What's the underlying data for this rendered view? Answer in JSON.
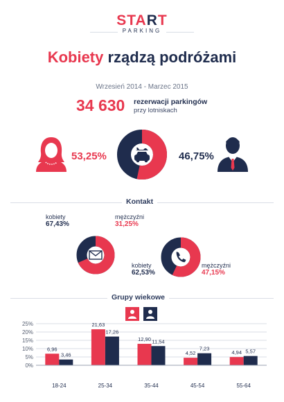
{
  "brand": {
    "name_part1": "STA",
    "name_part2": "R",
    "name_part3": "T",
    "sub": "PARKING"
  },
  "headline": {
    "accent": "Kobiety",
    "rest": " rządzą podróżami"
  },
  "period": "Wrzesień 2014 - Marzec 2015",
  "reservations": {
    "count": "34 630",
    "line1": "rezerwacji parkingów",
    "line2": "przy lotniskach"
  },
  "colors": {
    "women": "#e8384f",
    "men": "#1f2c4d",
    "grid": "#d9dde5"
  },
  "icons": {
    "woman": "woman-avatar-icon",
    "man": "man-avatar-icon",
    "travel": "plane-car-icon",
    "mail": "envelope-icon",
    "phone": "phone-icon"
  },
  "sections": {
    "contact": "Kontakt",
    "age": "Grupy wiekowe"
  },
  "chart_data": [
    {
      "type": "pie",
      "title": "",
      "labels": [
        "kobiety",
        "mężczyźni"
      ],
      "values": [
        53.25,
        46.75
      ],
      "display": [
        "53,25%",
        "46,75%"
      ]
    },
    {
      "type": "pie",
      "title": "",
      "labels": [
        "kobiety",
        "mężczyźni"
      ],
      "values": [
        67.43,
        31.25
      ],
      "display": [
        "67,43%",
        "31,25%"
      ],
      "label_text": [
        "kobiety",
        "mężczyźni"
      ]
    },
    {
      "type": "pie",
      "title": "",
      "labels": [
        "kobiety",
        "mężczyźni"
      ],
      "values": [
        62.53,
        47.15
      ],
      "display": [
        "62,53%",
        "47,15%"
      ],
      "label_text": [
        "kobiety",
        "mężczyźni"
      ]
    },
    {
      "type": "bar",
      "title": "",
      "categories": [
        "18-24",
        "25-34",
        "35-44",
        "45-54",
        "55-64"
      ],
      "series": [
        {
          "values": [
            6.96,
            21.63,
            12.9,
            4.52,
            4.94
          ],
          "labels": [
            "6,96",
            "21,63",
            "12,90",
            "4,52",
            "4,94"
          ]
        },
        {
          "values": [
            3.46,
            17.26,
            11.54,
            7.23,
            5.57
          ],
          "labels": [
            "3,46",
            "17,26",
            "11,54",
            "7,23",
            "5,57"
          ]
        }
      ],
      "yticks": [
        "25%",
        "20%",
        "15%",
        "10%",
        "5%",
        "0%"
      ],
      "ylim": [
        0,
        25
      ],
      "grid": true,
      "legend": "top-center"
    }
  ]
}
